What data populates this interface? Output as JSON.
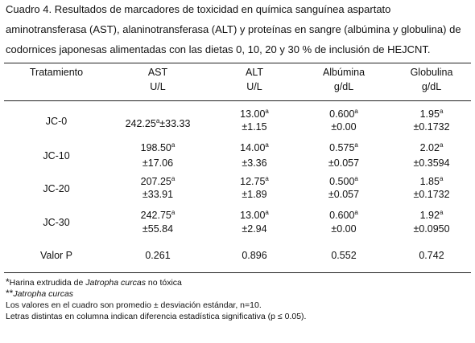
{
  "caption": [
    "Cuadro 4. Resultados de marcadores de toxicidad en química sanguínea aspartato",
    "aminotransferasa (AST), alaninotransferasa (ALT) y proteínas en sangre (albúmina y globulina) de",
    "codornices japonesas alimentadas con las dietas 0, 10, 20 y 30 % de inclusión de HEJCNT."
  ],
  "table": {
    "header": [
      [
        "Tratamiento"
      ],
      [
        "AST",
        "U/L"
      ],
      [
        "ALT",
        "U/L"
      ],
      [
        "Albúmina",
        "g/dL"
      ],
      [
        "Globulina",
        "g/dL"
      ]
    ],
    "rows": [
      {
        "label": "JC-0",
        "cells": [
          {
            "mean": "242.25",
            "sup": "a",
            "sd": "±33.33"
          },
          {
            "mean": "13.00",
            "sup": "a",
            "sd": "±1.15"
          },
          {
            "mean": "0.600",
            "sup": "a",
            "sd": "±0.00"
          },
          {
            "mean": "1.95",
            "sup": "a",
            "sd": "±0.1732"
          }
        ]
      },
      {
        "label": "JC-10",
        "cells": [
          {
            "mean": "198.50",
            "sup": "a",
            "sd": "±17.06"
          },
          {
            "mean": "14.00",
            "sup": "a",
            "sd": "±3.36"
          },
          {
            "mean": "0.575",
            "sup": "a",
            "sd": "±0.057"
          },
          {
            "mean": "2.02",
            "sup": "a",
            "sd": "±0.3594"
          }
        ]
      },
      {
        "label": "JC-20",
        "cells": [
          {
            "mean": "207.25",
            "sup": "a",
            "sd": "±33.91"
          },
          {
            "mean": "12.75",
            "sup": "a",
            "sd": "±1.89"
          },
          {
            "mean": "0.500",
            "sup": "a",
            "sd": "±0.057"
          },
          {
            "mean": "1.85",
            "sup": "a",
            "sd": "±0.1732"
          }
        ]
      },
      {
        "label": "JC-30",
        "cells": [
          {
            "mean": "242.75",
            "sup": "a",
            "sd": "±55.84"
          },
          {
            "mean": "13.00",
            "sup": "a",
            "sd": "±2.94"
          },
          {
            "mean": "0.600",
            "sup": "a",
            "sd": "±0.00"
          },
          {
            "mean": "1.92",
            "sup": "a",
            "sd": "±0.0950"
          }
        ]
      }
    ],
    "p_row": {
      "label": "Valor P",
      "values": [
        "0.261",
        "0.896",
        "0.552",
        "0.742"
      ]
    }
  },
  "footnotes": [
    {
      "mark": "*",
      "text": "Harina extrudida de ",
      "italic": "Jatropha curcas",
      "after": " no tóxica"
    },
    {
      "mark": "**",
      "italic": "Jatropha curcas"
    },
    {
      "text": "Los valores en el cuadro son promedio ± desviación estándar, n=10."
    },
    {
      "text": "Letras distintas en columna indican diferencia estadística significativa (p ≤ 0.05)."
    }
  ]
}
